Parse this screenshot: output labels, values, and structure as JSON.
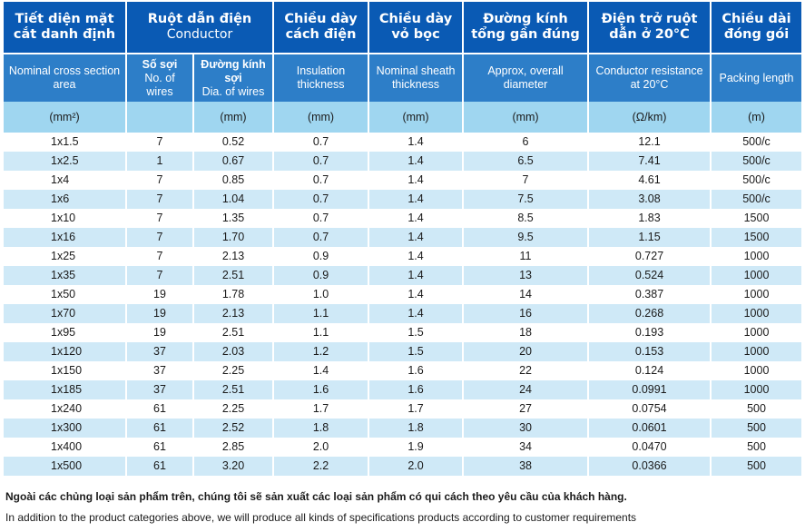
{
  "headers": {
    "size_vi": "Tiết diện mặt cắt danh định",
    "size_en": "Nominal cross section area",
    "size_unit": "(mm²)",
    "conductor_vi": "Ruột dẫn điện",
    "conductor_en": "Conductor",
    "wires_vi": "Số sợi",
    "wires_en": "No. of wires",
    "wire_dia_vi": "Đường kính sợi",
    "wire_dia_en": "Dia. of wires",
    "wire_dia_unit": "(mm)",
    "insulation_vi": "Chiều dày cách điện",
    "insulation_en": "Insulation thickness",
    "insulation_unit": "(mm)",
    "sheath_vi": "Chiều dày vỏ bọc",
    "sheath_en": "Nominal sheath thickness",
    "sheath_unit": "(mm)",
    "diameter_vi": "Đường kính tổng gần đúng",
    "diameter_en": "Approx, overall diameter",
    "diameter_unit": "(mm)",
    "resistance_vi": "Điện trở ruột dẫn ở 20°C",
    "resistance_en": "Conductor resistance at 20°C",
    "resistance_unit": "(Ω/km)",
    "packing_vi": "Chiều dài đóng gói",
    "packing_en": "Packing length",
    "packing_unit": "(m)"
  },
  "rows": [
    [
      "1x1.5",
      "7",
      "0.52",
      "0.7",
      "1.4",
      "6",
      "12.1",
      "500/c"
    ],
    [
      "1x2.5",
      "1",
      "0.67",
      "0.7",
      "1.4",
      "6.5",
      "7.41",
      "500/c"
    ],
    [
      "1x4",
      "7",
      "0.85",
      "0.7",
      "1.4",
      "7",
      "4.61",
      "500/c"
    ],
    [
      "1x6",
      "7",
      "1.04",
      "0.7",
      "1.4",
      "7.5",
      "3.08",
      "500/c"
    ],
    [
      "1x10",
      "7",
      "1.35",
      "0.7",
      "1.4",
      "8.5",
      "1.83",
      "1500"
    ],
    [
      "1x16",
      "7",
      "1.70",
      "0.7",
      "1.4",
      "9.5",
      "1.15",
      "1500"
    ],
    [
      "1x25",
      "7",
      "2.13",
      "0.9",
      "1.4",
      "11",
      "0.727",
      "1000"
    ],
    [
      "1x35",
      "7",
      "2.51",
      "0.9",
      "1.4",
      "13",
      "0.524",
      "1000"
    ],
    [
      "1x50",
      "19",
      "1.78",
      "1.0",
      "1.4",
      "14",
      "0.387",
      "1000"
    ],
    [
      "1x70",
      "19",
      "2.13",
      "1.1",
      "1.4",
      "16",
      "0.268",
      "1000"
    ],
    [
      "1x95",
      "19",
      "2.51",
      "1.1",
      "1.5",
      "18",
      "0.193",
      "1000"
    ],
    [
      "1x120",
      "37",
      "2.03",
      "1.2",
      "1.5",
      "20",
      "0.153",
      "1000"
    ],
    [
      "1x150",
      "37",
      "2.25",
      "1.4",
      "1.6",
      "22",
      "0.124",
      "1000"
    ],
    [
      "1x185",
      "37",
      "2.51",
      "1.6",
      "1.6",
      "24",
      "0.0991",
      "1000"
    ],
    [
      "1x240",
      "61",
      "2.25",
      "1.7",
      "1.7",
      "27",
      "0.0754",
      "500"
    ],
    [
      "1x300",
      "61",
      "2.52",
      "1.8",
      "1.8",
      "30",
      "0.0601",
      "500"
    ],
    [
      "1x400",
      "61",
      "2.85",
      "2.0",
      "1.9",
      "34",
      "0.0470",
      "500"
    ],
    [
      "1x500",
      "61",
      "3.20",
      "2.2",
      "2.0",
      "38",
      "0.0366",
      "500"
    ]
  ],
  "notes": {
    "vi": "Ngoài các chủng loại sản phẩm trên, chúng tôi sẽ sản xuất các loại sản phẩm có qui cách theo yêu cầu của khách hàng.",
    "en": "In addition to the product categories above, we will produce all kinds of specifications products according to customer requirements"
  },
  "colors": {
    "header_dark": "#0a5ab4",
    "header_medium": "#2d7ec8",
    "units_row": "#9fd6f0",
    "stripe": "#cfe9f7"
  }
}
